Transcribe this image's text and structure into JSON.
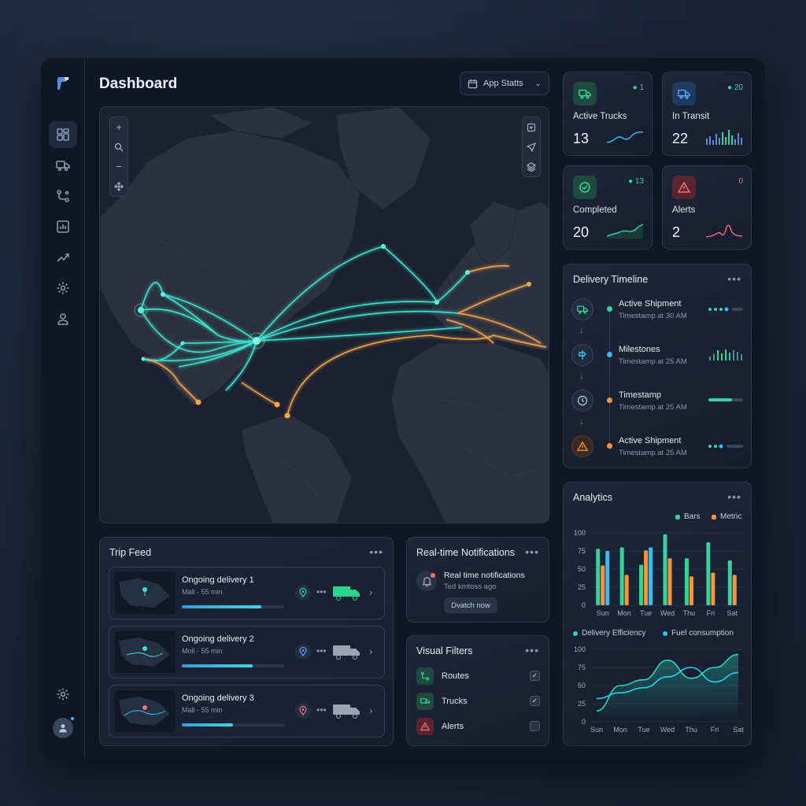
{
  "header": {
    "title": "Dashboard",
    "app_stats_label": "App Statts"
  },
  "stats": [
    {
      "label": "Active Trucks",
      "value": "13",
      "delta": "1",
      "color": "#34d399"
    },
    {
      "label": "In Transit",
      "value": "22",
      "delta": "20",
      "color": "#60a5fa"
    },
    {
      "label": "Completed",
      "value": "20",
      "delta": "13",
      "color": "#34d399"
    },
    {
      "label": "Alerts",
      "value": "2",
      "delta": "0",
      "color": "#f87171"
    }
  ],
  "timeline": {
    "title": "Delivery Timeline",
    "items": [
      {
        "name": "Active Shipment",
        "sub": "Timestamp at 30 AM"
      },
      {
        "name": "Milestones",
        "sub": "Timestamp at 25 AM"
      },
      {
        "name": "Timestamp",
        "sub": "Timestamp at 25 AM"
      },
      {
        "name": "Active Shipment",
        "sub": "Timestamp at 25 AM"
      }
    ]
  },
  "trip_feed": {
    "title": "Trip Feed",
    "trips": [
      {
        "name": "Ongoing delivery 1",
        "sub": "Mall - 55 min",
        "progress": 0.78
      },
      {
        "name": "Ongoing delivery 2",
        "sub": "Moll - 55 min",
        "progress": 0.69
      },
      {
        "name": "Ongoing delivery 3",
        "sub": "Mall - 55 min",
        "progress": 0.5
      }
    ]
  },
  "notifications": {
    "title": "Real-time Notifications",
    "message": "Real time notifications",
    "sub": "Ted kmtoss ago",
    "button": "Dvatch now"
  },
  "filters": {
    "title": "Visual Filters",
    "items": [
      {
        "label": "Routes",
        "checked": true
      },
      {
        "label": "Trucks",
        "checked": true
      },
      {
        "label": "Alerts",
        "checked": false
      }
    ]
  },
  "analytics": {
    "title": "Analytics",
    "legend_bars": "Bars",
    "legend_metric": "Metric",
    "legend_eff": "Delivery Efficiency",
    "legend_fuel": "Fuel consumption",
    "colors": {
      "teal": "#34d399",
      "orange": "#fb923c",
      "blue": "#38bdf8",
      "line1": "#2dd4bf",
      "line2": "#22d3ee"
    }
  },
  "chart_data": [
    {
      "type": "bar",
      "categories": [
        "Sun",
        "Mon",
        "Tue",
        "Wed",
        "Thu",
        "Fri",
        "Sat"
      ],
      "series": [
        {
          "name": "Bars",
          "values": [
            78,
            80,
            56,
            98,
            65,
            87,
            62
          ]
        },
        {
          "name": "Metric",
          "values": [
            55,
            42,
            76,
            65,
            40,
            45,
            42
          ]
        },
        {
          "values": [
            75,
            0,
            80,
            0,
            0,
            0,
            0
          ]
        }
      ],
      "yticks": [
        0,
        25,
        50,
        75,
        100
      ],
      "ylim": [
        0,
        100
      ]
    },
    {
      "type": "line",
      "categories": [
        "Sun",
        "Mon",
        "Tue",
        "Wed",
        "Thu",
        "Fri",
        "Sat"
      ],
      "series": [
        {
          "name": "Delivery Efficiency",
          "values": [
            15,
            50,
            58,
            85,
            60,
            75,
            93
          ]
        },
        {
          "name": "Fuel consumption",
          "values": [
            32,
            40,
            47,
            62,
            75,
            55,
            68
          ]
        }
      ],
      "yticks": [
        0,
        25,
        50,
        75,
        100
      ],
      "ylim": [
        0,
        100
      ]
    }
  ]
}
